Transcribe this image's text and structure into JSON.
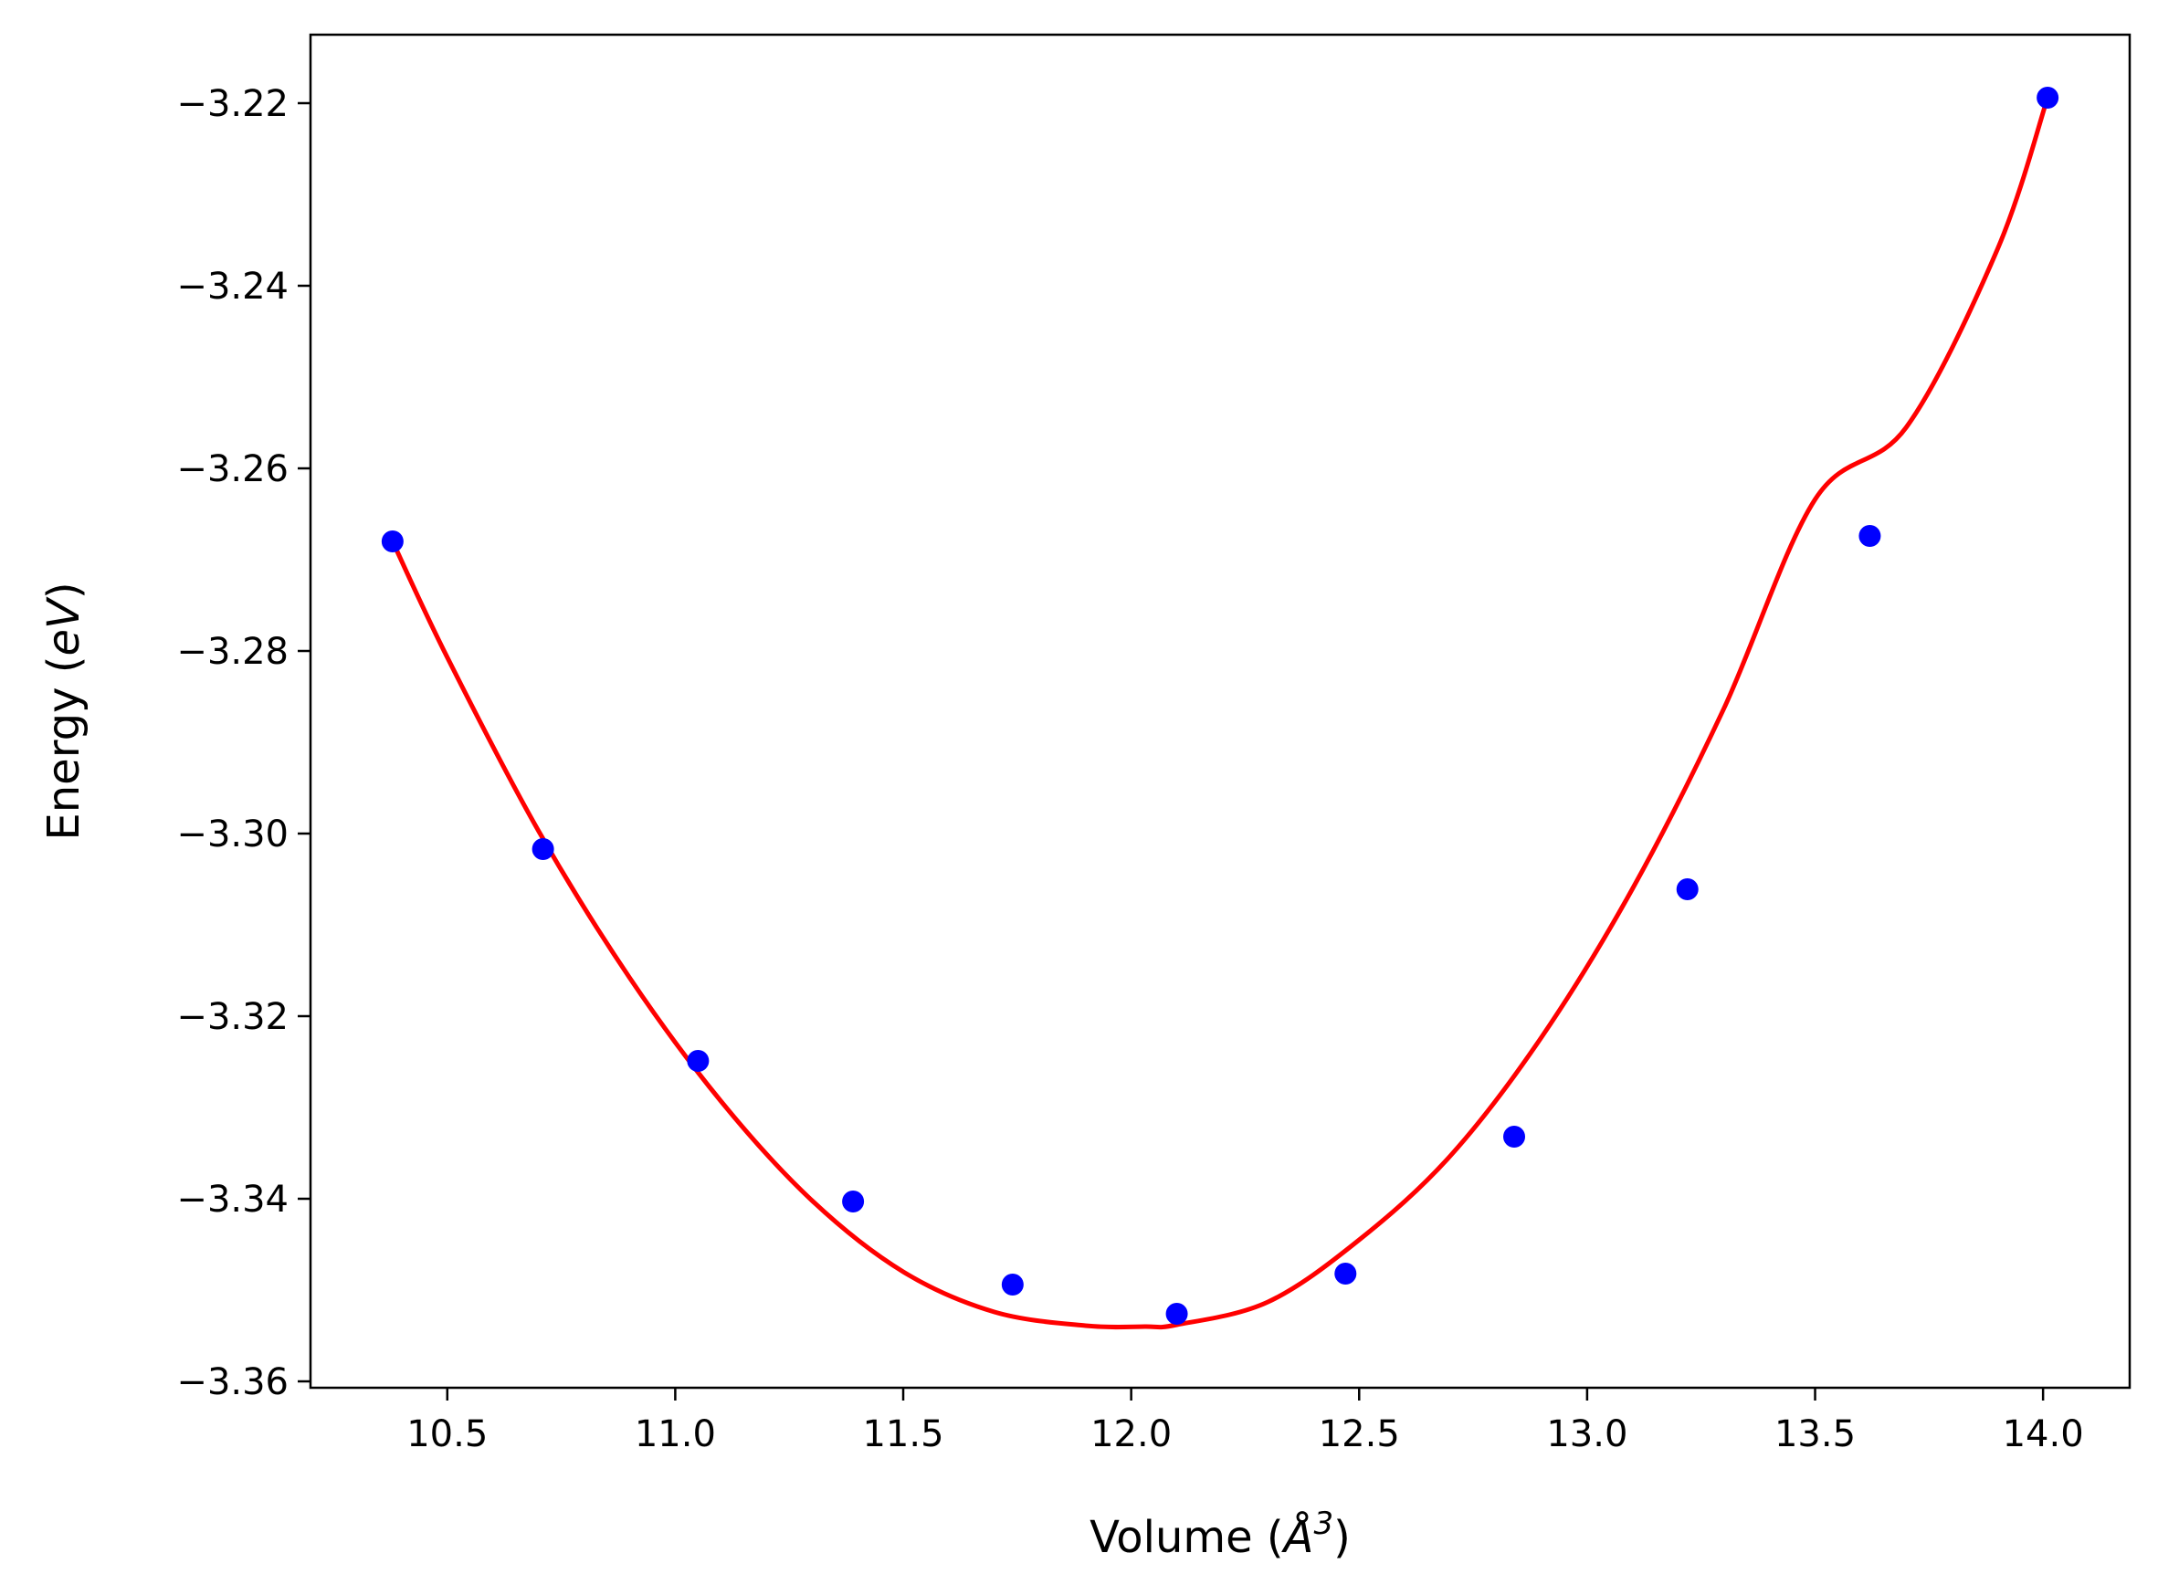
{
  "chart_data": {
    "type": "scatter",
    "xlabel": {
      "prefix": "Volume (",
      "symbol": "Å",
      "sup": "3",
      "suffix": ")"
    },
    "ylabel": {
      "prefix": "Energy (",
      "unit": "eV",
      "suffix": ")"
    },
    "xlim": [
      10.2,
      14.19
    ],
    "ylim": [
      -3.3607,
      -3.2125
    ],
    "grid": false,
    "xticks": [
      10.5,
      11.0,
      11.5,
      12.0,
      12.5,
      13.0,
      13.5,
      14.0
    ],
    "xtick_labels": [
      "10.5",
      "11.0",
      "11.5",
      "12.0",
      "12.5",
      "13.0",
      "13.5",
      "14.0"
    ],
    "yticks": [
      -3.22,
      -3.24,
      -3.26,
      -3.28,
      -3.3,
      -3.32,
      -3.34,
      -3.36
    ],
    "ytick_labels": [
      "−3.22",
      "−3.24",
      "−3.26",
      "−3.28",
      "−3.30",
      "−3.32",
      "−3.34",
      "−3.36"
    ],
    "series": [
      {
        "type": "scatter",
        "color": "#0000ff",
        "x": [
          10.38,
          10.71,
          11.05,
          11.39,
          11.74,
          12.1,
          12.47,
          12.84,
          13.22,
          13.62,
          14.01
        ],
        "y": [
          -3.268,
          -3.3017,
          -3.3249,
          -3.3403,
          -3.3494,
          -3.3526,
          -3.3482,
          -3.3332,
          -3.3061,
          -3.2674,
          -3.2194
        ]
      },
      {
        "type": "line",
        "color": "#ff0000",
        "x": [
          10.38,
          10.5,
          10.7,
          10.9,
          11.1,
          11.3,
          11.5,
          11.7,
          11.9,
          12.03,
          12.1,
          12.3,
          12.5,
          12.7,
          12.9,
          13.1,
          13.3,
          13.5,
          13.7,
          13.9,
          14.01
        ],
        "y": [
          -3.268,
          -3.2807,
          -3.2997,
          -3.3158,
          -3.3293,
          -3.3402,
          -3.348,
          -3.3524,
          -3.3539,
          -3.354,
          -3.3538,
          -3.3513,
          -3.3445,
          -3.3353,
          -3.3223,
          -3.306,
          -3.2863,
          -3.2634,
          -3.2555,
          -3.236,
          -3.2194
        ]
      }
    ]
  }
}
